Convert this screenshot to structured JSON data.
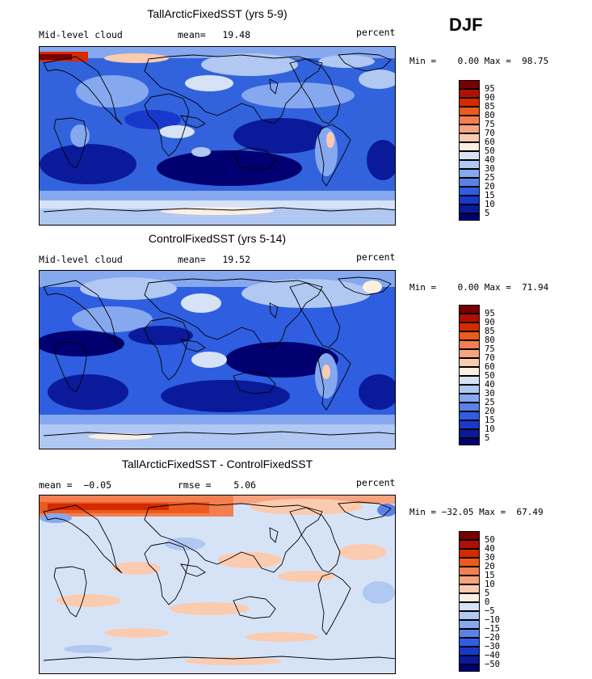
{
  "season": "DJF",
  "panels": [
    {
      "id": "tall",
      "title": "TallArcticFixedSST (yrs 5-9)",
      "variable": "Mid-level cloud",
      "stat_line": "mean=   19.48",
      "units": "percent",
      "min_max": "Min =    0.00 Max =  98.75",
      "legend_levels": [
        "95",
        "90",
        "85",
        "80",
        "75",
        "70",
        "60",
        "50",
        "40",
        "30",
        "25",
        "20",
        "15",
        "10",
        "5"
      ],
      "legend_colors": [
        "#7a0000",
        "#b01000",
        "#d52a00",
        "#ec5a20",
        "#f37f50",
        "#f8a380",
        "#fbcbb0",
        "#fdeee3",
        "#d6e3f7",
        "#b0c8f2",
        "#86a8ee",
        "#5a82e6",
        "#2f5ee0",
        "#1838cc",
        "#0a1a9a",
        "#000070"
      ]
    },
    {
      "id": "control",
      "title": "ControlFixedSST (yrs 5-14)",
      "variable": "Mid-level cloud",
      "stat_line": "mean=   19.52",
      "units": "percent",
      "min_max": "Min =    0.00 Max =  71.94",
      "legend_levels": [
        "95",
        "90",
        "85",
        "80",
        "75",
        "70",
        "60",
        "50",
        "40",
        "30",
        "25",
        "20",
        "15",
        "10",
        "5"
      ],
      "legend_colors": [
        "#7a0000",
        "#b01000",
        "#d52a00",
        "#ec5a20",
        "#f37f50",
        "#f8a380",
        "#fbcbb0",
        "#fdeee3",
        "#d6e3f7",
        "#b0c8f2",
        "#86a8ee",
        "#5a82e6",
        "#2f5ee0",
        "#1838cc",
        "#0a1a9a",
        "#000070"
      ]
    },
    {
      "id": "diff",
      "title": "TallArcticFixedSST - ControlFixedSST",
      "stat_left": "mean =  −0.05",
      "stat_mid": "rmse =    5.06",
      "units": "percent",
      "min_max": "Min = −32.05 Max =  67.49",
      "legend_levels": [
        "50",
        "40",
        "30",
        "20",
        "15",
        "10",
        "5",
        "0",
        "−5",
        "−10",
        "−15",
        "−20",
        "−30",
        "−40",
        "−50"
      ],
      "legend_colors": [
        "#7a0000",
        "#b01000",
        "#d52a00",
        "#ec5a20",
        "#f37f50",
        "#f8a380",
        "#fbcbb0",
        "#fdeee3",
        "#d6e3f7",
        "#b0c8f2",
        "#86a8ee",
        "#5a82e6",
        "#2f5ee0",
        "#1838cc",
        "#0a1a9a",
        "#000070"
      ]
    }
  ]
}
